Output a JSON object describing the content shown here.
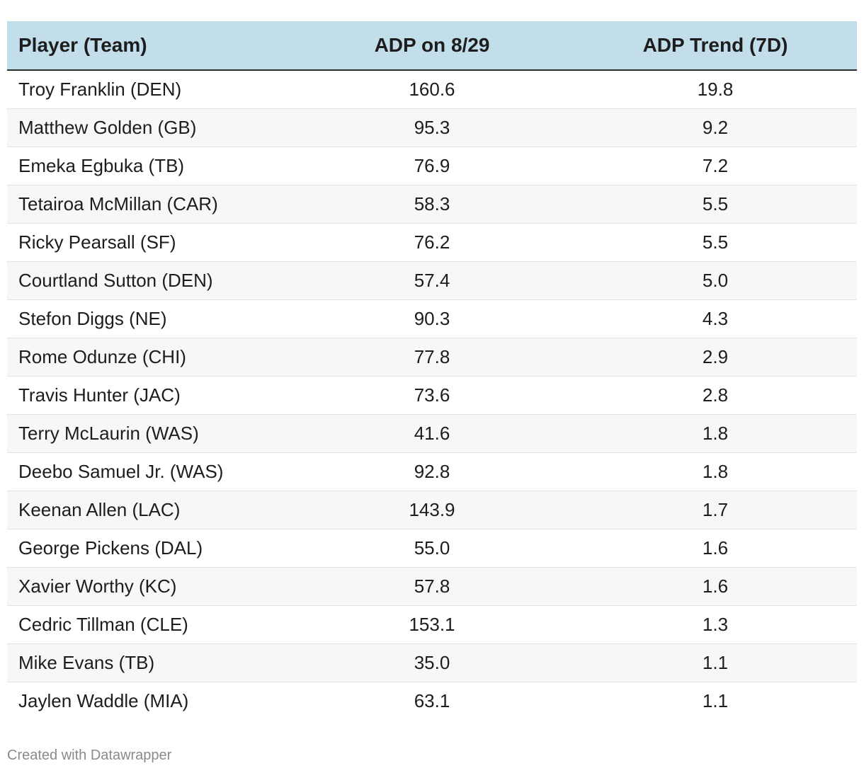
{
  "chart_data": {
    "type": "table",
    "columns": [
      "Player (Team)",
      "ADP on 8/29",
      "ADP Trend (7D)"
    ],
    "rows": [
      [
        "Troy Franklin (DEN)",
        "160.6",
        "19.8"
      ],
      [
        "Matthew Golden (GB)",
        "95.3",
        "9.2"
      ],
      [
        "Emeka Egbuka (TB)",
        "76.9",
        "7.2"
      ],
      [
        "Tetairoa McMillan (CAR)",
        "58.3",
        "5.5"
      ],
      [
        "Ricky Pearsall (SF)",
        "76.2",
        "5.5"
      ],
      [
        "Courtland Sutton (DEN)",
        "57.4",
        "5.0"
      ],
      [
        "Stefon Diggs (NE)",
        "90.3",
        "4.3"
      ],
      [
        "Rome Odunze (CHI)",
        "77.8",
        "2.9"
      ],
      [
        "Travis Hunter (JAC)",
        "73.6",
        "2.8"
      ],
      [
        "Terry McLaurin (WAS)",
        "41.6",
        "1.8"
      ],
      [
        "Deebo Samuel Jr. (WAS)",
        "92.8",
        "1.8"
      ],
      [
        "Keenan Allen (LAC)",
        "143.9",
        "1.7"
      ],
      [
        "George Pickens (DAL)",
        "55.0",
        "1.6"
      ],
      [
        "Xavier Worthy (KC)",
        "57.8",
        "1.6"
      ],
      [
        "Cedric Tillman (CLE)",
        "153.1",
        "1.3"
      ],
      [
        "Mike Evans (TB)",
        "35.0",
        "1.1"
      ],
      [
        "Jaylen Waddle (MIA)",
        "63.1",
        "1.1"
      ]
    ]
  },
  "colors": {
    "header_bg": "#c2deea",
    "zebra": "#f7f7f7"
  },
  "footer": {
    "credit": "Created with Datawrapper"
  }
}
